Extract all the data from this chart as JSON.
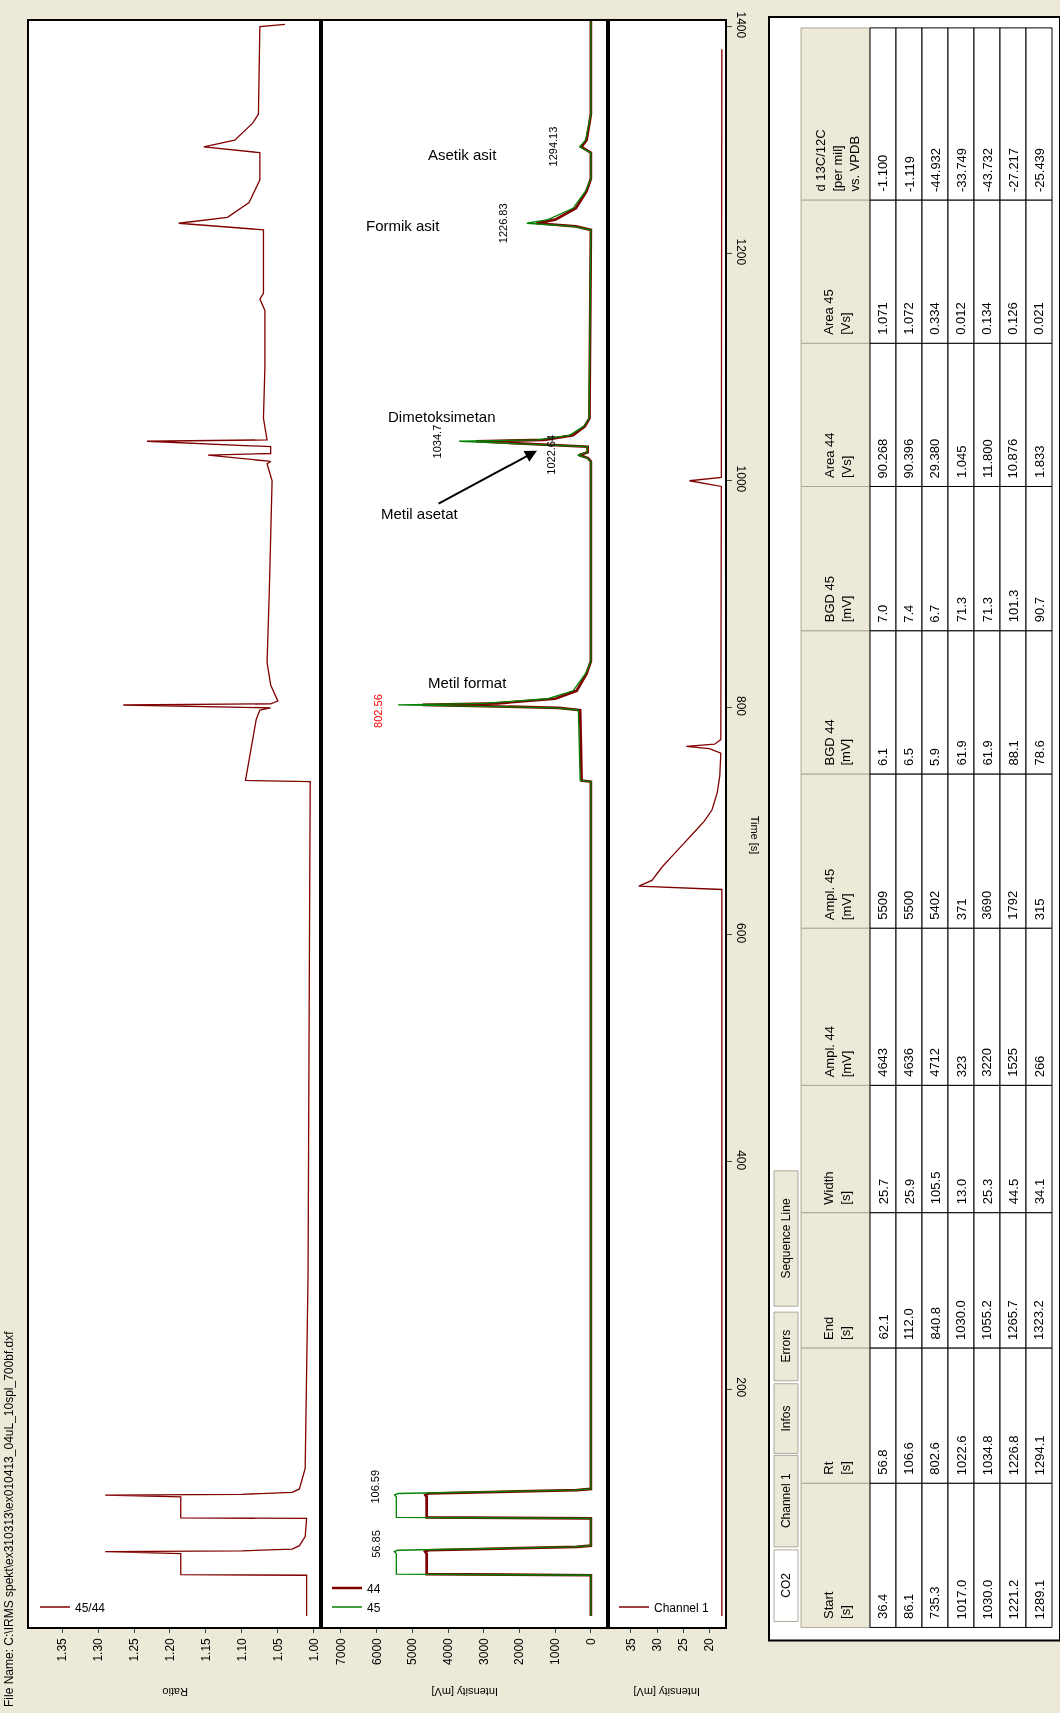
{
  "chart_data": [
    {
      "type": "line",
      "title": "File Name: C:\\IRMS spekt\\ex310313\\ex010413_04uL_10spl_700bf.dxf",
      "xlabel": "Ratio",
      "orientation": "horizontal",
      "legend": "bottom left",
      "tick_labels": "x",
      "xlim": [
        1.396,
        0.99
      ],
      "xticks": [
        {
          "value": 1.0,
          "label": "1.00"
        },
        1.05,
        {
          "value": 1.1,
          "label": "1.10"
        },
        1.15,
        {
          "value": 1.2,
          "label": "1.20"
        },
        1.25,
        {
          "value": 1.3,
          "label": "1.30"
        },
        1.35
      ],
      "ylim": [
        -10,
        1405
      ],
      "series": [
        {
          "name": "45/44",
          "color": "#800000",
          "x": [
            0,
            36,
            36.5,
            55,
            56.8,
            57.5,
            59,
            62,
            70,
            86,
            86.5,
            105,
            106.6,
            107.3,
            109,
            112,
            130,
            300,
            600,
            735,
            736,
            790,
            798,
            800,
            802.5,
            803.5,
            806,
            820,
            840,
            900,
            1000,
            1015,
            1017,
            1022.6,
            1024,
            1030,
            1034.8,
            1036,
            1055,
            1100,
            1150,
            1160,
            1165,
            1221,
            1226.8,
            1232,
            1245,
            1265,
            1289,
            1294,
            1300,
            1315,
            1323,
            1400,
            1402
          ],
          "values": [
            1.01,
            1.01,
            1.185,
            1.185,
            1.29,
            1.1,
            1.03,
            1.02,
            1.012,
            1.01,
            1.185,
            1.185,
            1.29,
            1.1,
            1.03,
            1.02,
            1.012,
            1.008,
            1.006,
            1.005,
            1.095,
            1.08,
            1.075,
            1.06,
            1.265,
            1.06,
            1.05,
            1.06,
            1.065,
            1.062,
            1.058,
            1.065,
            1.06,
            1.147,
            1.06,
            1.06,
            1.232,
            1.065,
            1.07,
            1.068,
            1.068,
            1.075,
            1.07,
            1.07,
            1.188,
            1.12,
            1.09,
            1.075,
            1.075,
            1.153,
            1.11,
            1.085,
            1.077,
            1.075,
            1.04
          ]
        }
      ]
    },
    {
      "type": "line",
      "xlabel": "Intensity [mV]",
      "orientation": "horizontal",
      "legend": "bottom left",
      "tick_labels": "x",
      "xlim": [
        7560,
        -480
      ],
      "xticks": [
        0,
        1000,
        2000,
        3000,
        4000,
        5000,
        6000,
        7000
      ],
      "ylim": [
        -10,
        1405
      ],
      "series": [
        {
          "name": "44",
          "color": "#800000",
          "x": [
            0,
            36,
            37,
            55,
            56.85,
            58,
            61,
            62,
            86,
            87,
            105,
            106.6,
            108,
            111,
            112,
            735,
            736,
            798,
            800,
            802.6,
            804,
            808,
            815,
            830,
            841,
            1017,
            1020,
            1022.6,
            1025,
            1030,
            1034.8,
            1036,
            1040,
            1048,
            1055,
            1221,
            1224,
            1226.8,
            1230,
            1240,
            1255,
            1266,
            1289,
            1294.1,
            1300,
            1315,
            1323,
            1405
          ],
          "values": [
            0,
            0,
            4600,
            4600,
            4643,
            4550,
            400,
            0,
            0,
            4600,
            4600,
            4636,
            4550,
            400,
            0,
            0,
            260,
            300,
            900,
            4712,
            2600,
            1000,
            400,
            120,
            0,
            0,
            80,
            323,
            90,
            90,
            3220,
            1300,
            500,
            170,
            40,
            0,
            420,
            1525,
            1000,
            420,
            120,
            0,
            0,
            266,
            120,
            40,
            0,
            0
          ]
        },
        {
          "name": "45",
          "color": "#008000",
          "x": [
            0,
            36,
            37,
            55,
            56.85,
            58,
            61,
            62,
            86,
            87,
            105,
            106.6,
            108,
            111,
            112,
            735,
            736,
            798,
            800,
            802.6,
            804,
            808,
            815,
            830,
            841,
            1017,
            1020,
            1022.6,
            1025,
            1030,
            1034.8,
            1036,
            1040,
            1048,
            1055,
            1221,
            1224,
            1226.8,
            1230,
            1240,
            1255,
            1266,
            1289,
            1294.1,
            1300,
            1315,
            1323,
            1405
          ],
          "values": [
            0,
            0,
            5450,
            5450,
            5509,
            5400,
            500,
            0,
            0,
            5450,
            5450,
            5500,
            5400,
            500,
            0,
            0,
            300,
            350,
            1000,
            5402,
            3000,
            1200,
            500,
            150,
            0,
            0,
            100,
            371,
            100,
            100,
            3690,
            1500,
            600,
            200,
            50,
            0,
            500,
            1792,
            1200,
            500,
            150,
            0,
            0,
            315,
            150,
            50,
            0,
            0
          ]
        }
      ],
      "annotations": [
        {
          "text": "56.85",
          "x": 5509,
          "y": 56.85
        },
        {
          "text": "106.59",
          "x": 5500,
          "y": 106.6
        },
        {
          "text": "802.56",
          "x": 5402,
          "y": 802.6
        },
        {
          "text": "1022.64",
          "x": 371,
          "y": 1022.6
        },
        {
          "text": "1034.7",
          "x": 3690,
          "y": 1034.8
        },
        {
          "text": "1226.83",
          "x": 1792,
          "y": 1226.8
        },
        {
          "text": "1294.13",
          "x": 315,
          "y": 1294.1
        },
        {
          "text": "Metil format",
          "x": 5402,
          "y": 802.6
        },
        "Metil asetat",
        {
          "text": "Dimetoksimetan",
          "x": 3690,
          "y": 1034.8
        },
        "Formik asit",
        "Asetik asit"
      ]
    },
    {
      "type": "line",
      "xlabel": "Intensity [mV]",
      "ylabel": "Time [s]",
      "orientation": "horizontal",
      "legend": "bottom left",
      "xlim": [
        39.4,
        17.0
      ],
      "xticks": [
        20,
        25,
        30,
        35
      ],
      "ylim": [
        -10,
        1405
      ],
      "yticks": [
        200,
        400,
        600,
        800,
        1000,
        1200,
        1400
      ],
      "series": [
        {
          "name": "Channel 1",
          "color": "#800000",
          "x": [
            0,
            640,
            643,
            648,
            660,
            670,
            680,
            690,
            700,
            710,
            725,
            740,
            760,
            764,
            766,
            768,
            772,
            995,
            1000,
            1003,
            1380
          ],
          "values": [
            17.6,
            17.6,
            33.5,
            31,
            29,
            27,
            25,
            23,
            21,
            19.5,
            18.5,
            18,
            17.8,
            20,
            24.4,
            19,
            17.8,
            17.7,
            23.8,
            17.7,
            17.6
          ]
        }
      ]
    },
    {
      "type": "other",
      "categories": [
        "Start\n[s]",
        "Rt\n[s]",
        "End\n[s]",
        "Width\n[s]",
        "Ampl. 44\n[mV]",
        "Ampl. 45\n[mV]",
        "BGD 44\n[mV]",
        "BGD 45\n[mV]",
        "Area 44\n[Vs]",
        "Area 45\n[Vs]",
        "d 13C/12C\n[per mil]\nvs. VPDB"
      ],
      "cell_labels": [
        [
          "36.4",
          "56.8",
          "62.1",
          "25.7",
          "4643",
          "5509",
          "6.1",
          "7.0",
          "90.268",
          "1.071",
          "-1.100"
        ],
        [
          "86.1",
          "106.6",
          "112.0",
          "25.9",
          "4636",
          "5500",
          "6.5",
          "7.4",
          "90.396",
          "1.072",
          "-1.119"
        ],
        [
          "735.3",
          "802.6",
          "840.8",
          "105.5",
          "4712",
          "5402",
          "5.9",
          "6.7",
          "29.380",
          "0.334",
          "-44.932"
        ],
        [
          "1017.0",
          "1022.6",
          "1030.0",
          "13.0",
          "323",
          "371",
          "61.9",
          "71.3",
          "1.045",
          "0.012",
          "-33.749"
        ],
        [
          "1030.0",
          "1034.8",
          "1055.2",
          "25.3",
          "3220",
          "3690",
          "61.9",
          "71.3",
          "11.800",
          "0.134",
          "-43.732"
        ],
        [
          "1221.2",
          "1226.8",
          "1265.7",
          "44.5",
          "1525",
          "1792",
          "88.1",
          "101.3",
          "10.876",
          "0.126",
          "-27.217"
        ],
        [
          "1289.1",
          "1294.1",
          "1323.2",
          "34.1",
          "266",
          "315",
          "78.6",
          "90.7",
          "1.833",
          "0.021",
          "-25.439"
        ]
      ],
      "annotations": [
        "CO2",
        "Channel 1",
        "Infos",
        "Errors",
        "Sequence Line"
      ]
    }
  ]
}
